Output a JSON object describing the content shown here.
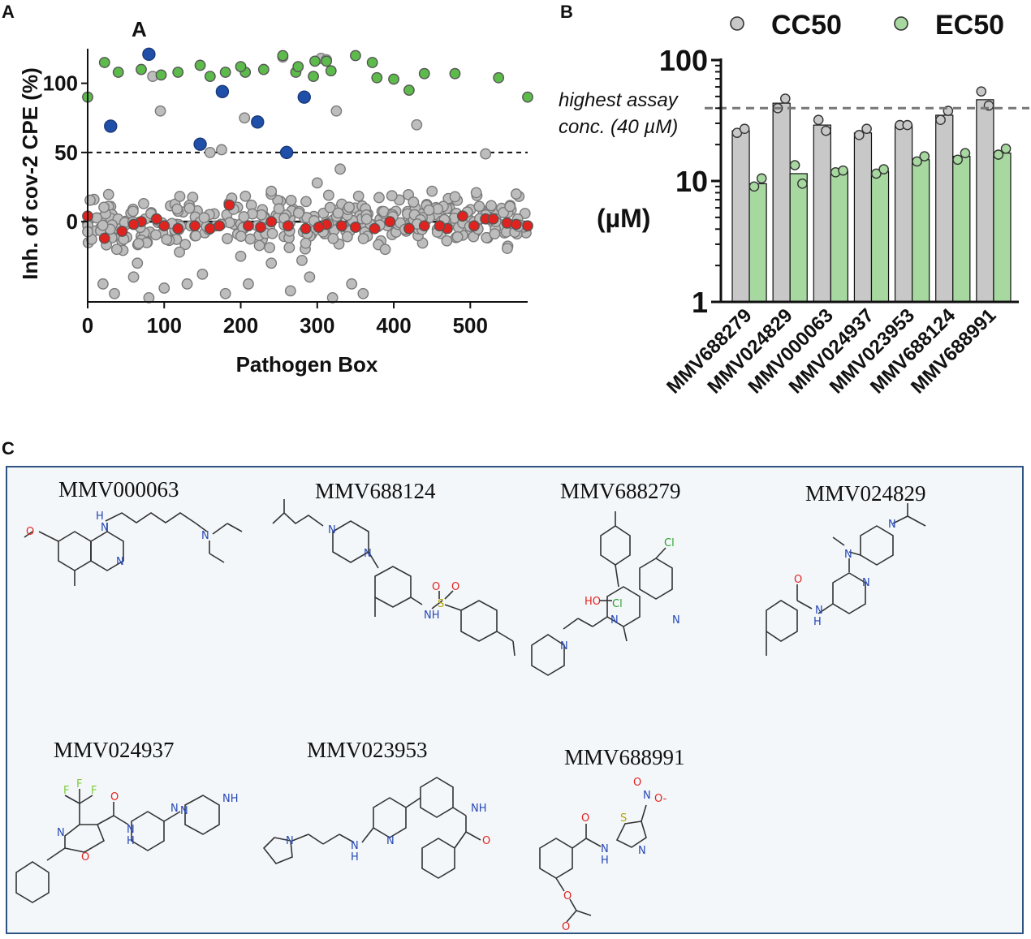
{
  "panels": {
    "a": {
      "letter": "A",
      "annotation": "A",
      "ylabel": "Inh. of cov-2 CPE (%)",
      "xlabel": "Pathogen Box"
    },
    "b": {
      "letter": "B",
      "ylabel": "(µM)",
      "threshold_line1": "highest assay",
      "threshold_line2": "conc. (40 µM)"
    },
    "c": {
      "letter": "C"
    }
  },
  "chart_data": [
    {
      "type": "scatter",
      "panel": "A",
      "title": "",
      "xlabel": "Pathogen Box",
      "ylabel": "Inh. of cov-2 CPE (%)",
      "xlim": [
        0,
        575
      ],
      "ylim": [
        -58,
        125
      ],
      "xticks": [
        "0",
        "100",
        "200",
        "300",
        "400",
        "500"
      ],
      "xtick_values": [
        0,
        100,
        200,
        300,
        400,
        500
      ],
      "yticks": [
        "100",
        "50",
        "0"
      ],
      "ytick_values": [
        100,
        50,
        0
      ],
      "reference_lines": [
        {
          "y": 50,
          "style": "dashed"
        },
        {
          "y": 0,
          "style": "solid"
        }
      ],
      "series": [
        {
          "name": "hits",
          "color": "#1f4fa8",
          "points": [
            [
              80,
              121
            ],
            [
              30,
              69
            ],
            [
              176,
              94
            ],
            [
              222,
              72
            ],
            [
              283,
              90
            ],
            [
              147,
              56
            ],
            [
              260,
              50
            ]
          ]
        },
        {
          "name": "controls-high",
          "color": "#5dbb4b",
          "points": [
            [
              0,
              90
            ],
            [
              22,
              115
            ],
            [
              40,
              108
            ],
            [
              70,
              110
            ],
            [
              96,
              106
            ],
            [
              118,
              108
            ],
            [
              147,
              113
            ],
            [
              160,
              105
            ],
            [
              180,
              108
            ],
            [
              206,
              108
            ],
            [
              230,
              110
            ],
            [
              255,
              120
            ],
            [
              272,
              108
            ],
            [
              297,
              116
            ],
            [
              318,
              109
            ],
            [
              350,
              120
            ],
            [
              372,
              115
            ],
            [
              400,
              103
            ],
            [
              440,
              107
            ],
            [
              480,
              107
            ],
            [
              537,
              104
            ],
            [
              575,
              90
            ],
            [
              295,
              105
            ],
            [
              378,
              104
            ],
            [
              200,
              112
            ],
            [
              275,
              112
            ],
            [
              312,
              116
            ],
            [
              420,
              95
            ]
          ]
        },
        {
          "name": "controls-low",
          "color": "#e0231f",
          "points": [
            [
              0,
              4
            ],
            [
              22,
              -12
            ],
            [
              45,
              -7
            ],
            [
              70,
              0
            ],
            [
              90,
              2
            ],
            [
              118,
              -5
            ],
            [
              140,
              -3
            ],
            [
              160,
              -5
            ],
            [
              185,
              12
            ],
            [
              210,
              -3
            ],
            [
              240,
              0
            ],
            [
              262,
              -3
            ],
            [
              285,
              -5
            ],
            [
              312,
              -2
            ],
            [
              350,
              -4
            ],
            [
              375,
              -5
            ],
            [
              395,
              0
            ],
            [
              440,
              -3
            ],
            [
              470,
              -5
            ],
            [
              490,
              4
            ],
            [
              520,
              2
            ],
            [
              548,
              -1
            ],
            [
              575,
              -3
            ],
            [
              60,
              -2
            ],
            [
              100,
              -3
            ],
            [
              172,
              -3
            ],
            [
              226,
              -4
            ],
            [
              302,
              -4
            ],
            [
              332,
              -3
            ],
            [
              420,
              -5
            ],
            [
              460,
              -3
            ],
            [
              505,
              -3
            ],
            [
              530,
              2
            ],
            [
              560,
              -2
            ]
          ]
        },
        {
          "name": "library",
          "color": "#bdbdbd",
          "distribution": "approx. 400 compounds, mostly between -25 and 25, with a cluster near -45 for x in 0-370",
          "points": [
            [
              85,
              105
            ],
            [
              95,
              80
            ],
            [
              205,
              75
            ],
            [
              325,
              80
            ],
            [
              430,
              70
            ],
            [
              520,
              49
            ],
            [
              175,
              52
            ],
            [
              160,
              50
            ],
            [
              305,
              118
            ],
            [
              312,
              117
            ],
            [
              255,
              119
            ],
            [
              20,
              -45
            ],
            [
              35,
              -52
            ],
            [
              60,
              -40
            ],
            [
              80,
              -55
            ],
            [
              100,
              -48
            ],
            [
              130,
              -45
            ],
            [
              150,
              -38
            ],
            [
              180,
              -52
            ],
            [
              210,
              -45
            ],
            [
              240,
              -30
            ],
            [
              265,
              -50
            ],
            [
              290,
              -40
            ],
            [
              320,
              -55
            ],
            [
              345,
              -45
            ],
            [
              360,
              -52
            ],
            [
              38,
              -20
            ],
            [
              65,
              -30
            ],
            [
              120,
              -22
            ],
            [
              200,
              -25
            ],
            [
              280,
              -28
            ],
            [
              330,
              38
            ],
            [
              300,
              28
            ],
            [
              240,
              22
            ],
            [
              450,
              22
            ],
            [
              480,
              18
            ],
            [
              560,
              20
            ]
          ]
        }
      ]
    },
    {
      "type": "bar",
      "panel": "B",
      "title": "",
      "scale": "log",
      "ylim": [
        1,
        100
      ],
      "yticks": [
        "100",
        "10",
        "1"
      ],
      "ytick_values": [
        100,
        10,
        1
      ],
      "ylabel": "(µM)",
      "categories": [
        "MMV688279",
        "MMV024829",
        "MMV000063",
        "MMV024937",
        "MMV023953",
        "MMV688124",
        "MMV688991"
      ],
      "legend": [
        "CC50",
        "EC50"
      ],
      "legend_position": "top",
      "threshold": {
        "value": 40,
        "label": "highest assay conc. (40 µM)"
      },
      "series": [
        {
          "name": "CC50",
          "color": "#c8c8c8",
          "values": [
            26,
            44,
            29,
            25,
            29,
            35,
            47
          ],
          "replicates": [
            [
              25,
              27
            ],
            [
              40,
              48
            ],
            [
              32,
              26
            ],
            [
              24,
              27
            ],
            [
              29,
              29
            ],
            [
              32,
              38
            ],
            [
              55,
              42
            ]
          ]
        },
        {
          "name": "EC50",
          "color": "#a6d8a0",
          "values": [
            9.5,
            11.5,
            12,
            12,
            15,
            16,
            17
          ],
          "replicates": [
            [
              9,
              10.5
            ],
            [
              13.5,
              9.5
            ],
            [
              11.8,
              12.2
            ],
            [
              11.5,
              12.5
            ],
            [
              14.5,
              16
            ],
            [
              15,
              17
            ],
            [
              16.5,
              18.5
            ]
          ]
        }
      ]
    }
  ],
  "structures": [
    {
      "name": "MMV000063"
    },
    {
      "name": "MMV688124"
    },
    {
      "name": "MMV688279"
    },
    {
      "name": "MMV024829"
    },
    {
      "name": "MMV024937"
    },
    {
      "name": "MMV023953"
    },
    {
      "name": "MMV688991"
    }
  ],
  "atoms": {
    "o": "O",
    "n": "N",
    "h": "H",
    "nh": "NH",
    "cl": "Cl",
    "ho": "HO",
    "s": "S",
    "f": "F",
    "cl_small": "Cl",
    "nplus": "N",
    "ominus": "O-"
  },
  "colors": {
    "hits": "#1f4fa8",
    "green": "#5dbb4b",
    "red": "#e0231f",
    "grey": "#bdbdbd",
    "panel_border": "#2f5483",
    "panel_bg": "#f4f7fa",
    "atom_n": "#2547b5",
    "atom_o": "#e0231f",
    "atom_cl": "#2aa02a",
    "atom_s": "#b5a600",
    "atom_f": "#7ecb3a"
  }
}
